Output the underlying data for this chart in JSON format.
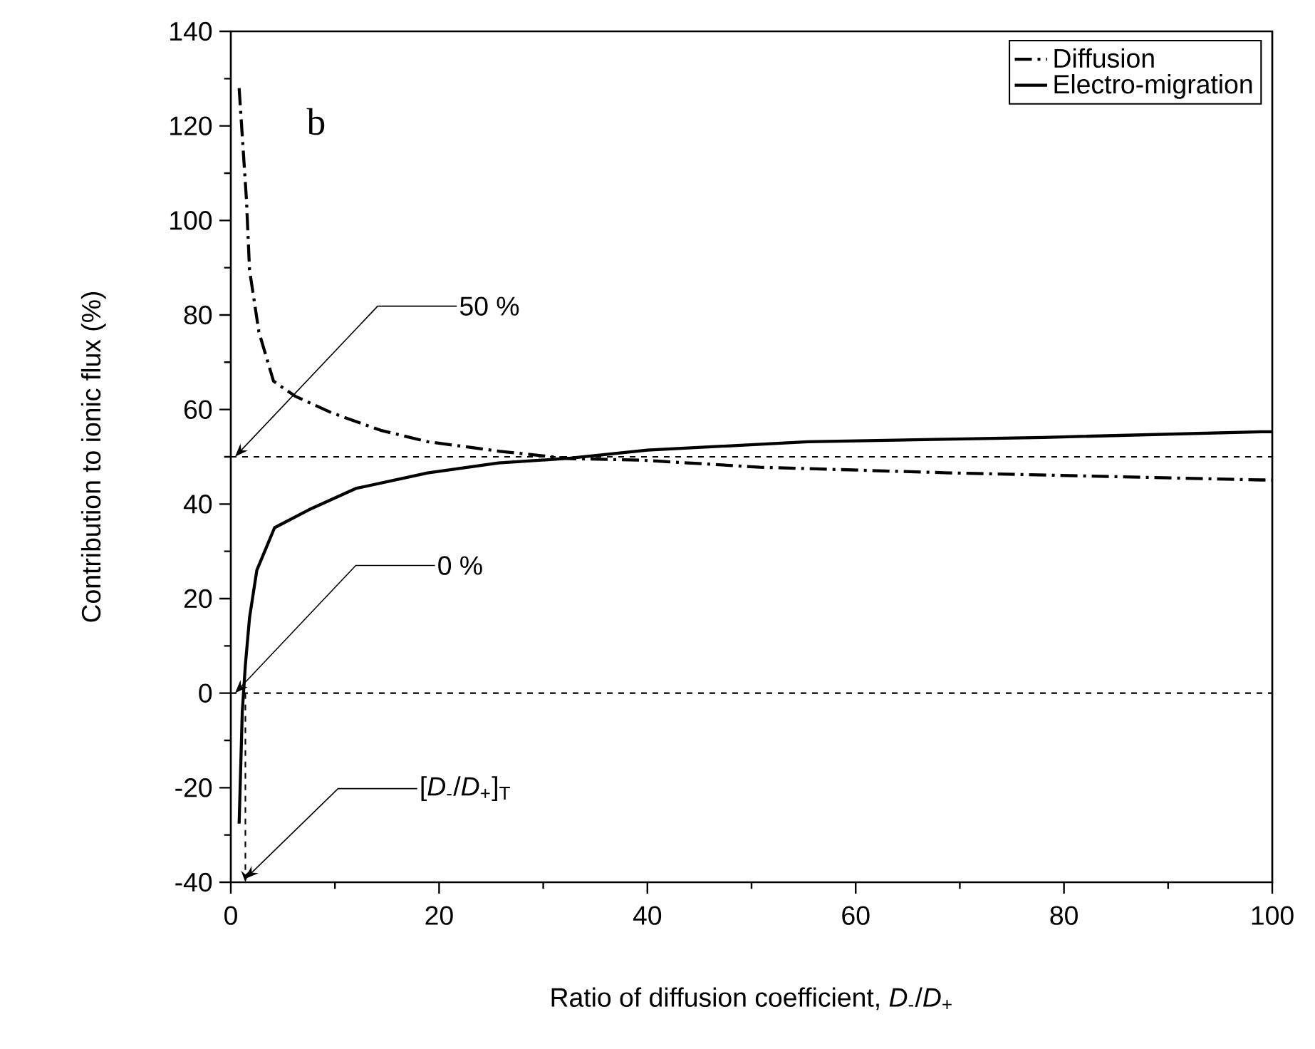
{
  "chart_data": {
    "type": "line",
    "xlabel": "Ratio of diffusion coefficient, *D*$_{-}$/*D*$_{+}$",
    "ylabel": "Contribution to ionic flux (%)",
    "xlim": [
      0,
      100
    ],
    "xticks": [
      0,
      20,
      40,
      60,
      80,
      100
    ],
    "ylim": [
      -40,
      140
    ],
    "yticks": [
      -40,
      -20,
      0,
      20,
      40,
      60,
      80,
      100,
      120,
      140
    ],
    "legend": "top right",
    "annotations": [
      "b"
    ],
    "ref_lines": [
      {
        "axis": "y",
        "value": 50,
        "label": "50 %",
        "line_style": "dashed"
      },
      {
        "axis": "y",
        "value": 0,
        "label": "0 %",
        "line_style": "dashed"
      },
      {
        "axis": "x",
        "value": 1.4,
        "label": "[*D*$_{-}$/*D*$_{+}$]$_{T}$",
        "line_style": "dashed"
      }
    ],
    "series": [
      {
        "name": "Diffusion",
        "color": "#000000",
        "line_style": "dashdot",
        "x": [
          0.8,
          1.5,
          1.8,
          2.7,
          4.1,
          6.2,
          9.7,
          14.4,
          18.9,
          25.7,
          32.6,
          39.4,
          50.8,
          69,
          99,
          100
        ],
        "values": [
          128,
          104.5,
          89.5,
          76.4,
          66,
          62.8,
          59.3,
          55.6,
          53.2,
          51.2,
          49.6,
          49.3,
          47.8,
          46.6,
          45.1,
          45.1
        ]
      },
      {
        "name": "Electro-migration",
        "color": "#000000",
        "line_style": "solid",
        "x": [
          0.8,
          1.1,
          1.4,
          1.8,
          2.5,
          4.2,
          7.5,
          12,
          18.9,
          25.7,
          32.6,
          40,
          55.4,
          78,
          99,
          100
        ],
        "values": [
          -27.6,
          -4,
          6,
          16,
          26,
          35,
          38.8,
          43.3,
          46.6,
          48.7,
          49.7,
          51.4,
          53.2,
          54.1,
          55.3,
          55.3
        ]
      }
    ]
  }
}
